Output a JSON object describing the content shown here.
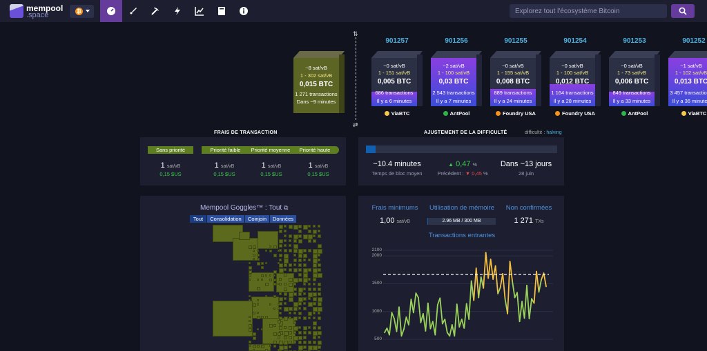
{
  "header": {
    "logo_top": "mempool",
    "logo_bottom": ".space",
    "network_icon": "bitcoin-icon",
    "nav": [
      "dashboard-icon",
      "rocket-icon",
      "mining-icon",
      "lightning-icon",
      "graphs-icon",
      "docs-icon",
      "info-icon"
    ],
    "search_placeholder": "Explorez tout l'écosystème Bitcoin"
  },
  "mempool_block": {
    "fee_median": "~8 sat/vB",
    "fee_range": "1 - 302 sat/vB",
    "total": "0,015 BTC",
    "tx_count": "1 271 transactions",
    "eta": "Dans ~9 minutes"
  },
  "blocks": [
    {
      "height": "901257",
      "fee_median": "~0 sat/vB",
      "fee_range": "1 - 151 sat/vB",
      "total": "0,005 BTC",
      "tx_count": "686 transactions",
      "ago": "Il y a 6 minutes",
      "pool": "ViaBTC",
      "fill": 0.3,
      "pool_color": "#f5c84b"
    },
    {
      "height": "901256",
      "fee_median": "~2 sat/vB",
      "fee_range": "1 - 100 sat/vB",
      "total": "0,03 BTC",
      "tx_count": "2 543 transactions",
      "ago": "Il y a 7 minutes",
      "pool": "AntPool",
      "fill": 1.0,
      "pool_color": "#2fb34a"
    },
    {
      "height": "901255",
      "fee_median": "~0 sat/vB",
      "fee_range": "1 - 155 sat/vB",
      "total": "0,008 BTC",
      "tx_count": "889 transactions",
      "ago": "Il y a 24 minutes",
      "pool": "Foundry USA",
      "fill": 0.35,
      "pool_color": "#f7931a"
    },
    {
      "height": "901254",
      "fee_median": "~0 sat/vB",
      "fee_range": "1 - 100 sat/vB",
      "total": "0,012 BTC",
      "tx_count": "1 164 transactions",
      "ago": "Il y a 28 minutes",
      "pool": "Foundry USA",
      "fill": 0.45,
      "pool_color": "#f7931a"
    },
    {
      "height": "901253",
      "fee_median": "~0 sat/vB",
      "fee_range": "1 - 73 sat/vB",
      "total": "0,006 BTC",
      "tx_count": "849 transactions",
      "ago": "Il y a 33 minutes",
      "pool": "AntPool",
      "fill": 0.3,
      "pool_color": "#2fb34a"
    },
    {
      "height": "901252",
      "fee_median": "~1 sat/vB",
      "fee_range": "1 - 102 sat/vB",
      "total": "0,013 BTC",
      "tx_count": "3 457 transactions",
      "ago": "Il y a 36 minutes",
      "pool": "ViaBTC",
      "fill": 1.0,
      "pool_color": "#f5c84b"
    }
  ],
  "fees": {
    "title": "FRAIS DE TRANSACTION",
    "labels": [
      "Sans priorité",
      "Priorité faible",
      "Priorité moyenne",
      "Priorité haute"
    ],
    "values": [
      "1",
      "1",
      "1",
      "1"
    ],
    "unit": "sat/vB",
    "usd": [
      "0,15 $US",
      "0,15 $US",
      "0,15 $US",
      "0,15 $US"
    ]
  },
  "difficulty": {
    "title": "AJUSTEMENT DE LA DIFFICULTÉ",
    "toggle_a": "difficulté",
    "toggle_sep": " : ",
    "toggle_b": "halving",
    "progress": 0.05,
    "block_time": "~10.4 minutes",
    "block_time_label": "Temps de bloc moyen",
    "change": "0,47",
    "change_unit": "%",
    "previous_label": "Précédent :",
    "previous": "0,45",
    "previous_unit": "%",
    "eta": "Dans ~13 jours",
    "eta_date": "28 juin"
  },
  "goggles": {
    "title": "Mempool Goggles™ : Tout",
    "tabs": [
      "Tout",
      "Consolidation",
      "Coinjoin",
      "Données"
    ]
  },
  "mempool_stats": {
    "min_fee_label": "Frais minimums",
    "min_fee": "1,00",
    "min_fee_unit": "sat/vB",
    "memory_label": "Utilisation de mémoire",
    "memory": "2.96 MB / 300 MB",
    "memory_fill": 0.01,
    "unconfirmed_label": "Non confirmées",
    "unconfirmed": "1 271",
    "unconfirmed_unit": "TXs"
  },
  "chart_data": {
    "type": "line",
    "title": "Transactions entrantes",
    "xlabel": "",
    "ylabel": "",
    "ylim": [
      500,
      2100
    ],
    "yticks": [
      500,
      1000,
      1500,
      2000,
      2100
    ],
    "threshold": 1667,
    "threshold_color": "#ffffff",
    "line_color": "#9bd35b",
    "high_color": "#f4c042",
    "grid": true,
    "series": [
      {
        "values": [
          620,
          700,
          580,
          980,
          870,
          640,
          1080,
          560,
          680,
          900,
          760,
          1220,
          980,
          1330,
          1250,
          800,
          960,
          650,
          1150,
          690,
          820,
          580,
          1120,
          1240,
          780,
          860,
          620,
          560,
          760,
          560,
          1130,
          720,
          860,
          700,
          1140,
          860,
          1550,
          1200,
          1780,
          1250,
          1620,
          1420,
          2060,
          1600,
          1940,
          1580,
          1820,
          1320,
          1430,
          1680,
          1220,
          960,
          1900,
          1540,
          1250,
          1340,
          820,
          1180,
          880,
          1470,
          870,
          1230,
          1150,
          1720,
          1350,
          1570,
          1690,
          1450
        ]
      }
    ]
  }
}
